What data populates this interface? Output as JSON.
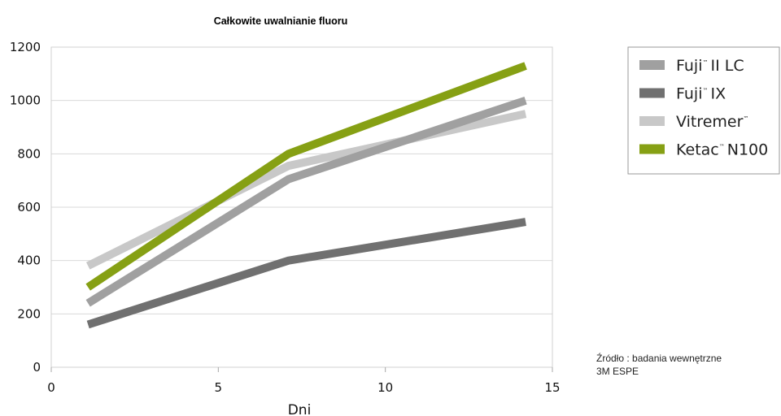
{
  "chart_data": {
    "type": "line",
    "title": "Całkowite uwalnianie fluoru",
    "xlabel": "Dni",
    "ylabel": "",
    "xlim": [
      0,
      15
    ],
    "ylim": [
      0,
      1200
    ],
    "xticks": [
      0,
      5,
      10,
      15
    ],
    "yticks": [
      0,
      200,
      400,
      600,
      800,
      1000,
      1200
    ],
    "xtick_labels": [
      "0",
      "5",
      "10",
      "15"
    ],
    "ytick_labels": [
      "0",
      "200",
      "400",
      "600",
      "800",
      "1000",
      "1200"
    ],
    "grid": "horizontal",
    "legend_position": "top-right",
    "x": [
      1.1,
      7.1,
      14.2
    ],
    "series": [
      {
        "name": "Fuji",
        "suffix": "II LC",
        "values": [
          240,
          705,
          1000
        ],
        "color": "#a0a0a0"
      },
      {
        "name": "Fuji",
        "suffix": "IX",
        "values": [
          160,
          400,
          545
        ],
        "color": "#707070"
      },
      {
        "name": "Vitremer",
        "suffix": "",
        "values": [
          380,
          755,
          950
        ],
        "color": "#c8c8c8"
      },
      {
        "name": "Ketac",
        "suffix": "N100",
        "values": [
          300,
          800,
          1130
        ],
        "color": "#86a014"
      }
    ],
    "trademark": "™",
    "source": [
      "Źródło : badania wewnętrzne",
      "3M ESPE"
    ]
  }
}
